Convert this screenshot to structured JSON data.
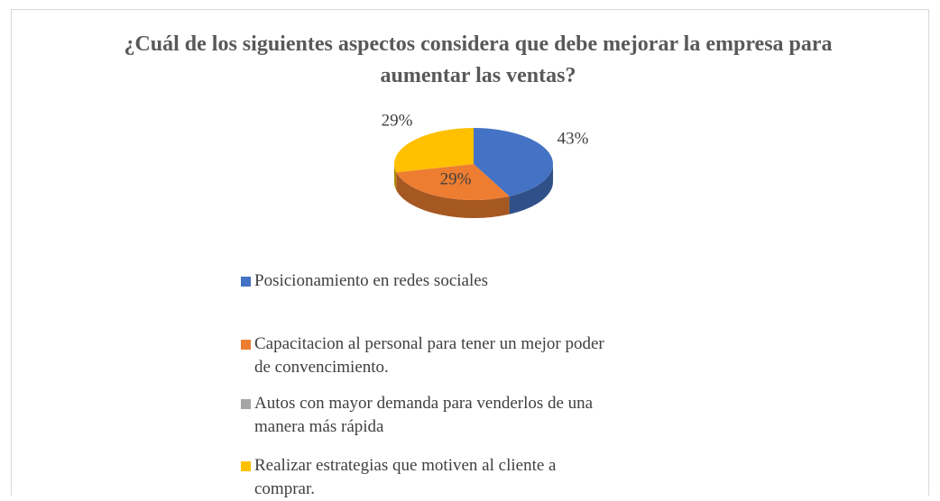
{
  "chart_data": {
    "type": "pie",
    "title": "¿Cuál de los siguientes aspectos considera que debe mejorar la empresa para aumentar las ventas?",
    "categories": [
      "Posicionamiento en redes sociales",
      "Capacitacion al personal para tener un mejor poder de convencimiento.",
      "Autos con mayor demanda para venderlos de una manera más rápida",
      "Realizar estrategias que motiven al cliente a comprar."
    ],
    "values": [
      43,
      29,
      0,
      29
    ],
    "value_labels": [
      "43%",
      "29%",
      null,
      "29%"
    ],
    "colors": [
      "#4472c4",
      "#ed7d31",
      "#a5a5a5",
      "#ffc000"
    ]
  }
}
